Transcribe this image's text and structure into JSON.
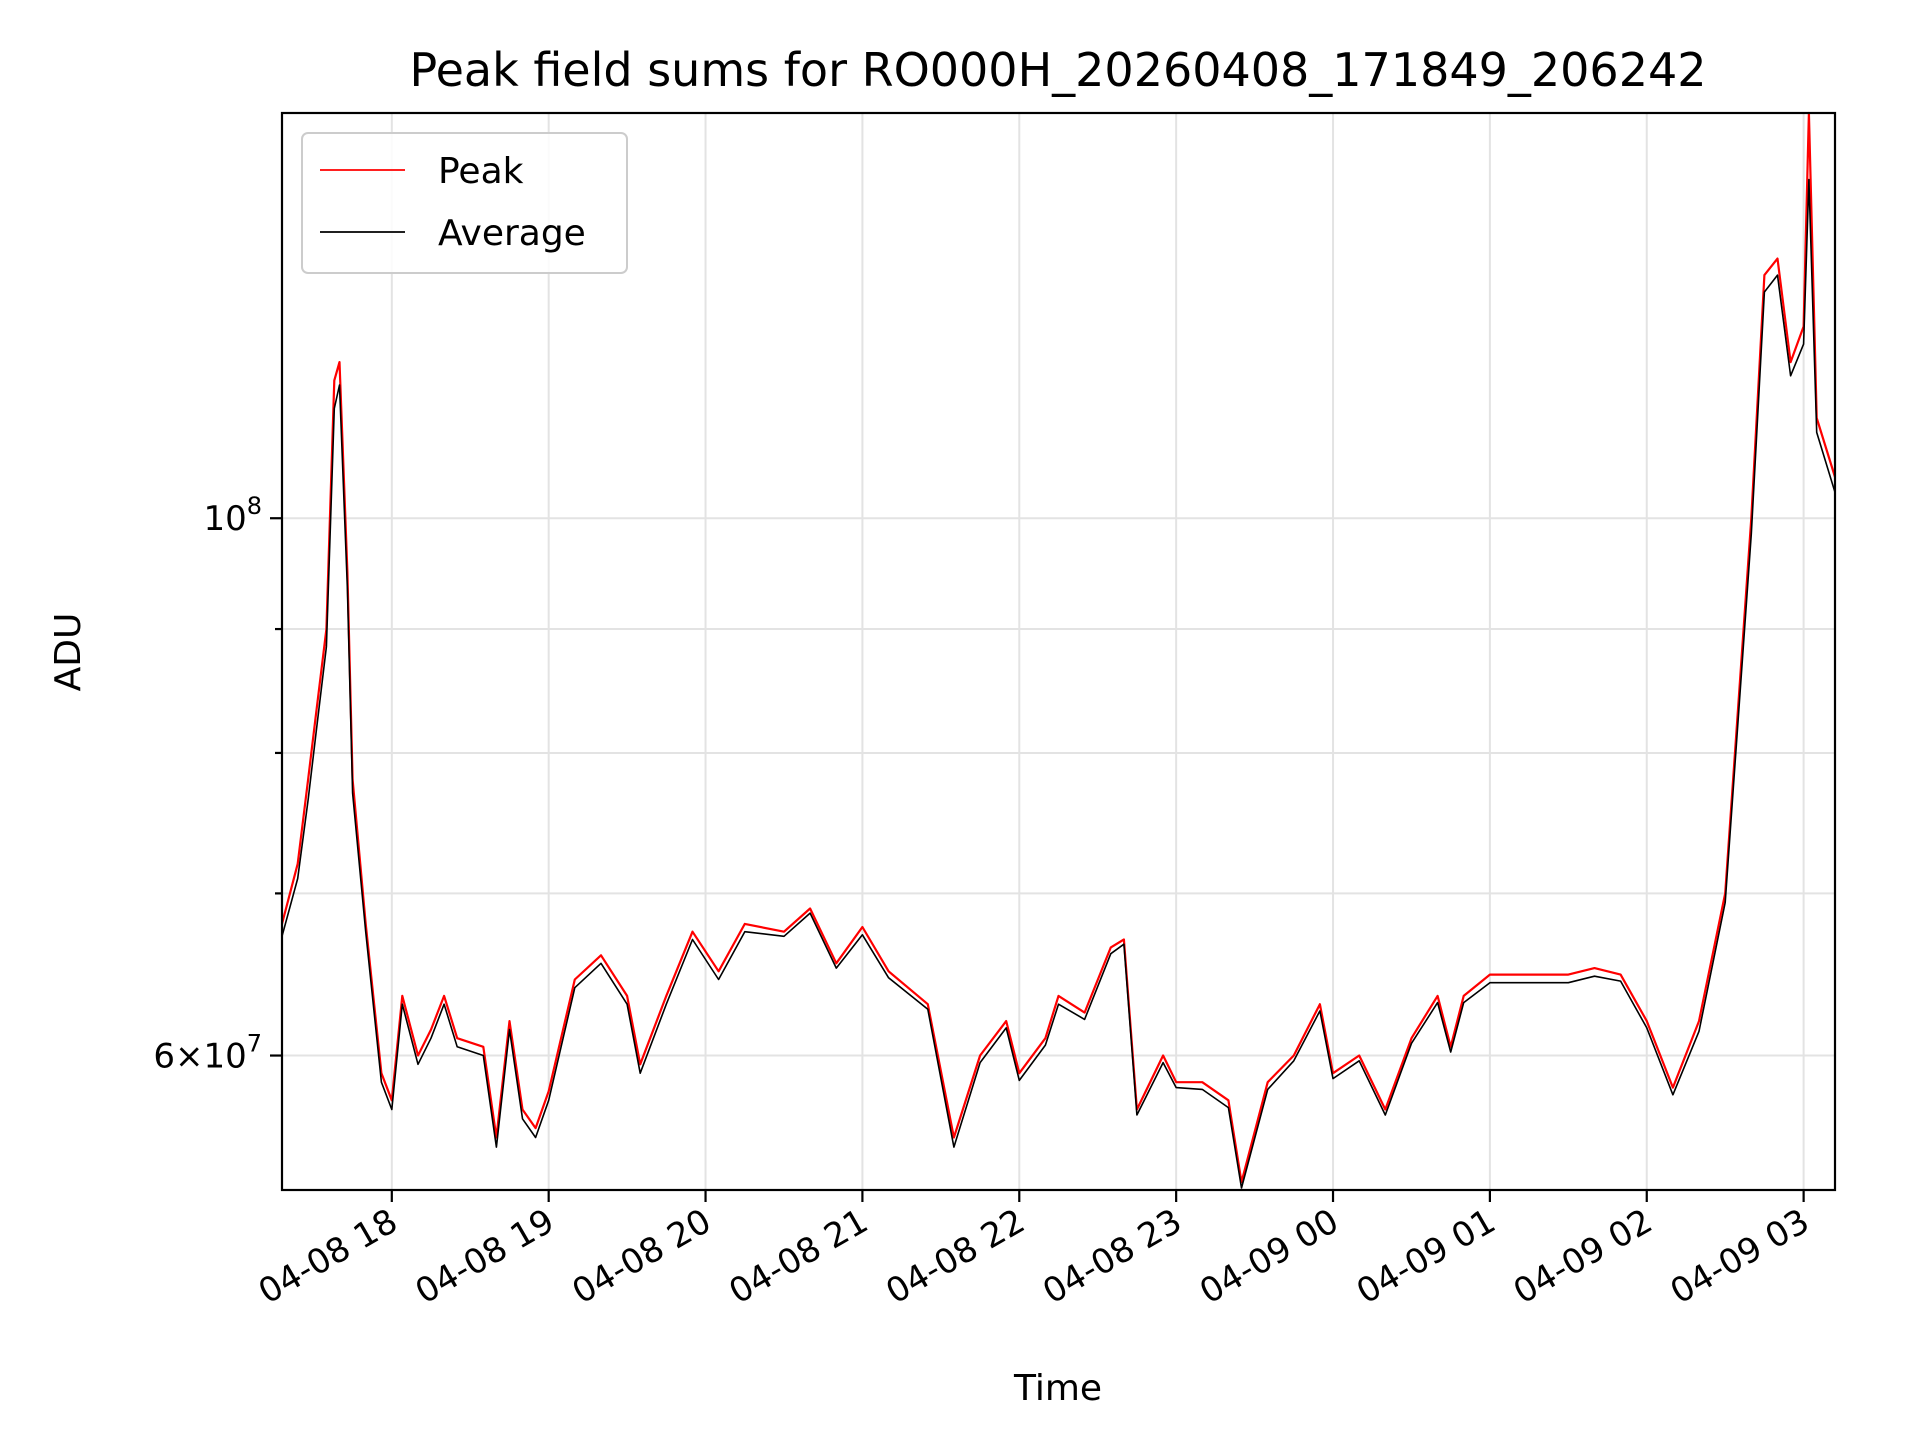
{
  "chart_data": {
    "type": "line",
    "title": "Peak field sums for RO000H_20260408_171849_206242",
    "xlabel": "Time",
    "ylabel": "ADU",
    "y_scale": "log",
    "ylim": [
      52800000,
      147000000
    ],
    "xlim": [
      "2026-04-08 17:18",
      "2026-04-09 03:12"
    ],
    "grid": true,
    "legend_position": "top-left",
    "x_ticks": [
      {
        "t": "2026-04-08 18:00",
        "label": "04-08 18"
      },
      {
        "t": "2026-04-08 19:00",
        "label": "04-08 19"
      },
      {
        "t": "2026-04-08 20:00",
        "label": "04-08 20"
      },
      {
        "t": "2026-04-08 21:00",
        "label": "04-08 21"
      },
      {
        "t": "2026-04-08 22:00",
        "label": "04-08 22"
      },
      {
        "t": "2026-04-08 23:00",
        "label": "04-08 23"
      },
      {
        "t": "2026-04-09 00:00",
        "label": "04-09 00"
      },
      {
        "t": "2026-04-09 01:00",
        "label": "04-09 01"
      },
      {
        "t": "2026-04-09 02:00",
        "label": "04-09 02"
      },
      {
        "t": "2026-04-09 03:00",
        "label": "04-09 03"
      }
    ],
    "y_ticks": [
      {
        "value": 100000000,
        "base": "10",
        "exp": "8"
      },
      {
        "value": 60000000,
        "mant": "6",
        "base": "10",
        "exp": "7"
      }
    ],
    "y_minor_ticks": [
      70000000,
      80000000,
      90000000
    ],
    "series": [
      {
        "name": "Peak",
        "color": "#ff0000",
        "points": [
          [
            "2026-04-08 17:18",
            68000000
          ],
          [
            "2026-04-08 17:24",
            72000000
          ],
          [
            "2026-04-08 17:28",
            78000000
          ],
          [
            "2026-04-08 17:31",
            83000000
          ],
          [
            "2026-04-08 17:35",
            90000000
          ],
          [
            "2026-04-08 17:38",
            114000000
          ],
          [
            "2026-04-08 17:40",
            116000000
          ],
          [
            "2026-04-08 17:43",
            95000000
          ],
          [
            "2026-04-08 17:45",
            78000000
          ],
          [
            "2026-04-08 17:50",
            68000000
          ],
          [
            "2026-04-08 17:56",
            59000000
          ],
          [
            "2026-04-08 18:00",
            57500000
          ],
          [
            "2026-04-08 18:04",
            63500000
          ],
          [
            "2026-04-08 18:10",
            60000000
          ],
          [
            "2026-04-08 18:15",
            61500000
          ],
          [
            "2026-04-08 18:20",
            63500000
          ],
          [
            "2026-04-08 18:25",
            61000000
          ],
          [
            "2026-04-08 18:35",
            60500000
          ],
          [
            "2026-04-08 18:40",
            55500000
          ],
          [
            "2026-04-08 18:45",
            62000000
          ],
          [
            "2026-04-08 18:50",
            57000000
          ],
          [
            "2026-04-08 18:55",
            56000000
          ],
          [
            "2026-04-08 19:00",
            58000000
          ],
          [
            "2026-04-08 19:10",
            64500000
          ],
          [
            "2026-04-08 19:20",
            66000000
          ],
          [
            "2026-04-08 19:30",
            63500000
          ],
          [
            "2026-04-08 19:35",
            59500000
          ],
          [
            "2026-04-08 19:45",
            63500000
          ],
          [
            "2026-04-08 19:55",
            67500000
          ],
          [
            "2026-04-08 20:05",
            65000000
          ],
          [
            "2026-04-08 20:15",
            68000000
          ],
          [
            "2026-04-08 20:30",
            67500000
          ],
          [
            "2026-04-08 20:40",
            69000000
          ],
          [
            "2026-04-08 20:50",
            65500000
          ],
          [
            "2026-04-08 21:00",
            67800000
          ],
          [
            "2026-04-08 21:10",
            65000000
          ],
          [
            "2026-04-08 21:25",
            63000000
          ],
          [
            "2026-04-08 21:35",
            55500000
          ],
          [
            "2026-04-08 21:45",
            60000000
          ],
          [
            "2026-04-08 21:55",
            62000000
          ],
          [
            "2026-04-08 22:00",
            59000000
          ],
          [
            "2026-04-08 22:10",
            61000000
          ],
          [
            "2026-04-08 22:15",
            63500000
          ],
          [
            "2026-04-08 22:25",
            62500000
          ],
          [
            "2026-04-08 22:35",
            66500000
          ],
          [
            "2026-04-08 22:40",
            67000000
          ],
          [
            "2026-04-08 22:45",
            57000000
          ],
          [
            "2026-04-08 22:55",
            60000000
          ],
          [
            "2026-04-08 23:00",
            58500000
          ],
          [
            "2026-04-08 23:10",
            58500000
          ],
          [
            "2026-04-08 23:20",
            57500000
          ],
          [
            "2026-04-08 23:25",
            53200000
          ],
          [
            "2026-04-08 23:35",
            58500000
          ],
          [
            "2026-04-08 23:45",
            60000000
          ],
          [
            "2026-04-08 23:55",
            63000000
          ],
          [
            "2026-04-09 00:00",
            59000000
          ],
          [
            "2026-04-09 00:10",
            60000000
          ],
          [
            "2026-04-09 00:20",
            57000000
          ],
          [
            "2026-04-09 00:30",
            61000000
          ],
          [
            "2026-04-09 00:40",
            63500000
          ],
          [
            "2026-04-09 00:45",
            60500000
          ],
          [
            "2026-04-09 00:50",
            63500000
          ],
          [
            "2026-04-09 01:00",
            64800000
          ],
          [
            "2026-04-09 01:30",
            64800000
          ],
          [
            "2026-04-09 01:40",
            65200000
          ],
          [
            "2026-04-09 01:50",
            64800000
          ],
          [
            "2026-04-09 02:00",
            62000000
          ],
          [
            "2026-04-09 02:10",
            58200000
          ],
          [
            "2026-04-09 02:20",
            62000000
          ],
          [
            "2026-04-09 02:30",
            70000000
          ],
          [
            "2026-04-09 02:40",
            100000000
          ],
          [
            "2026-04-09 02:45",
            126000000
          ],
          [
            "2026-04-09 02:50",
            128000000
          ],
          [
            "2026-04-09 02:55",
            116000000
          ],
          [
            "2026-04-09 03:00",
            120000000
          ],
          [
            "2026-04-09 03:02",
            147000000
          ],
          [
            "2026-04-09 03:05",
            110000000
          ],
          [
            "2026-04-09 03:12",
            104000000
          ]
        ]
      },
      {
        "name": "Average",
        "color": "#000000",
        "points": [
          [
            "2026-04-08 17:18",
            67200000
          ],
          [
            "2026-04-08 17:24",
            71000000
          ],
          [
            "2026-04-08 17:28",
            76500000
          ],
          [
            "2026-04-08 17:31",
            81500000
          ],
          [
            "2026-04-08 17:35",
            88500000
          ],
          [
            "2026-04-08 17:38",
            111000000
          ],
          [
            "2026-04-08 17:40",
            113500000
          ],
          [
            "2026-04-08 17:43",
            93500000
          ],
          [
            "2026-04-08 17:45",
            77000000
          ],
          [
            "2026-04-08 17:50",
            67500000
          ],
          [
            "2026-04-08 17:56",
            58500000
          ],
          [
            "2026-04-08 18:00",
            57000000
          ],
          [
            "2026-04-08 18:04",
            63000000
          ],
          [
            "2026-04-08 18:10",
            59500000
          ],
          [
            "2026-04-08 18:15",
            61000000
          ],
          [
            "2026-04-08 18:20",
            63000000
          ],
          [
            "2026-04-08 18:25",
            60500000
          ],
          [
            "2026-04-08 18:35",
            60000000
          ],
          [
            "2026-04-08 18:40",
            55000000
          ],
          [
            "2026-04-08 18:45",
            61500000
          ],
          [
            "2026-04-08 18:50",
            56500000
          ],
          [
            "2026-04-08 18:55",
            55500000
          ],
          [
            "2026-04-08 19:00",
            57500000
          ],
          [
            "2026-04-08 19:10",
            64000000
          ],
          [
            "2026-04-08 19:20",
            65500000
          ],
          [
            "2026-04-08 19:30",
            63000000
          ],
          [
            "2026-04-08 19:35",
            59000000
          ],
          [
            "2026-04-08 19:45",
            63000000
          ],
          [
            "2026-04-08 19:55",
            67000000
          ],
          [
            "2026-04-08 20:05",
            64500000
          ],
          [
            "2026-04-08 20:15",
            67500000
          ],
          [
            "2026-04-08 20:30",
            67200000
          ],
          [
            "2026-04-08 20:40",
            68700000
          ],
          [
            "2026-04-08 20:50",
            65200000
          ],
          [
            "2026-04-08 21:00",
            67300000
          ],
          [
            "2026-04-08 21:10",
            64600000
          ],
          [
            "2026-04-08 21:25",
            62700000
          ],
          [
            "2026-04-08 21:35",
            55000000
          ],
          [
            "2026-04-08 21:45",
            59600000
          ],
          [
            "2026-04-08 21:55",
            61600000
          ],
          [
            "2026-04-08 22:00",
            58600000
          ],
          [
            "2026-04-08 22:10",
            60600000
          ],
          [
            "2026-04-08 22:15",
            63000000
          ],
          [
            "2026-04-08 22:25",
            62100000
          ],
          [
            "2026-04-08 22:35",
            66100000
          ],
          [
            "2026-04-08 22:40",
            66700000
          ],
          [
            "2026-04-08 22:45",
            56700000
          ],
          [
            "2026-04-08 22:55",
            59600000
          ],
          [
            "2026-04-08 23:00",
            58200000
          ],
          [
            "2026-04-08 23:10",
            58100000
          ],
          [
            "2026-04-08 23:20",
            57100000
          ],
          [
            "2026-04-08 23:25",
            52900000
          ],
          [
            "2026-04-08 23:35",
            58100000
          ],
          [
            "2026-04-08 23:45",
            59700000
          ],
          [
            "2026-04-08 23:55",
            62600000
          ],
          [
            "2026-04-09 00:00",
            58700000
          ],
          [
            "2026-04-09 00:10",
            59700000
          ],
          [
            "2026-04-09 00:20",
            56700000
          ],
          [
            "2026-04-09 00:30",
            60700000
          ],
          [
            "2026-04-09 00:40",
            63100000
          ],
          [
            "2026-04-09 00:45",
            60200000
          ],
          [
            "2026-04-09 00:50",
            63100000
          ],
          [
            "2026-04-09 01:00",
            64300000
          ],
          [
            "2026-04-09 01:30",
            64300000
          ],
          [
            "2026-04-09 01:40",
            64700000
          ],
          [
            "2026-04-09 01:50",
            64400000
          ],
          [
            "2026-04-09 02:00",
            61600000
          ],
          [
            "2026-04-09 02:10",
            57800000
          ],
          [
            "2026-04-09 02:20",
            61400000
          ],
          [
            "2026-04-09 02:30",
            69400000
          ],
          [
            "2026-04-09 02:40",
            98500000
          ],
          [
            "2026-04-09 02:45",
            124000000
          ],
          [
            "2026-04-09 02:50",
            126000000
          ],
          [
            "2026-04-09 02:55",
            114500000
          ],
          [
            "2026-04-09 03:00",
            118000000
          ],
          [
            "2026-04-09 03:02",
            138000000
          ],
          [
            "2026-04-09 03:05",
            108500000
          ],
          [
            "2026-04-09 03:12",
            102500000
          ]
        ]
      }
    ]
  }
}
